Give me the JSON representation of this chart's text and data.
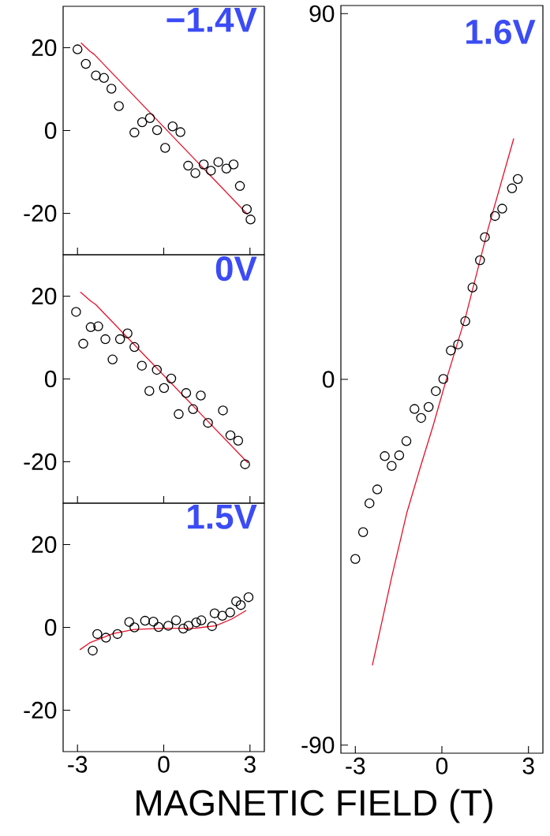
{
  "chart_data": [
    {
      "type": "scatter",
      "title": "−1.4V",
      "xlim": [
        -3.5,
        3.5
      ],
      "ylim": [
        -30,
        30
      ],
      "xticks": [
        -3,
        0,
        3
      ],
      "yticks": [
        -20,
        0,
        20
      ],
      "tick_labels": "y",
      "series": [
        {
          "marker": "circle",
          "color": "#000000",
          "x": [
            -3.0,
            -2.71,
            -2.36,
            -2.08,
            -1.82,
            -1.56,
            -1.02,
            -0.75,
            -0.48,
            -0.23,
            0.05,
            0.31,
            0.58,
            0.85,
            1.1,
            1.39,
            1.64,
            1.9,
            2.18,
            2.43,
            2.65,
            2.89,
            3.02
          ],
          "values": [
            19.6,
            16.1,
            13.3,
            12.7,
            10.1,
            5.9,
            -0.5,
            2.0,
            3.0,
            0.1,
            -4.2,
            1.0,
            -0.4,
            -8.5,
            -10.3,
            -8.2,
            -9.7,
            -7.6,
            -9.2,
            -8.2,
            -13.4,
            -19.0,
            -21.5
          ]
        },
        {
          "type": "line",
          "color": "#e8102a",
          "x": [
            -2.88,
            -2.56,
            -2.42,
            2.92
          ],
          "values": [
            21.2,
            19.1,
            18.4,
            -20.3
          ]
        }
      ]
    },
    {
      "type": "scatter",
      "title": "0V",
      "xlim": [
        -3.5,
        3.5
      ],
      "ylim": [
        -30,
        30
      ],
      "xticks": [
        -3,
        0,
        3
      ],
      "yticks": [
        -20,
        0,
        20
      ],
      "tick_labels": "y",
      "series": [
        {
          "marker": "circle",
          "color": "#000000",
          "x": [
            -3.05,
            -2.8,
            -2.54,
            -2.28,
            -2.03,
            -1.78,
            -1.52,
            -1.26,
            -1.02,
            -0.76,
            -0.5,
            -0.24,
            0.01,
            0.26,
            0.52,
            0.78,
            1.02,
            1.29,
            1.54,
            2.06,
            2.32,
            2.59,
            2.83
          ],
          "values": [
            16.2,
            8.5,
            12.5,
            12.7,
            9.6,
            4.7,
            9.6,
            11.0,
            7.7,
            3.2,
            -2.9,
            2.2,
            -2.2,
            0.1,
            -8.5,
            -3.4,
            -7.3,
            -4.0,
            -10.6,
            -7.6,
            -13.6,
            -14.9,
            -20.6
          ]
        },
        {
          "type": "line",
          "color": "#e8102a",
          "x": [
            -2.9,
            -2.54,
            -2.37,
            2.93
          ],
          "values": [
            21.0,
            18.8,
            18.0,
            -20.3
          ]
        }
      ]
    },
    {
      "type": "scatter",
      "title": "1.5V",
      "xlabel": "MAGNETIC FIELD (T)",
      "xlim": [
        -3.5,
        3.5
      ],
      "ylim": [
        -30,
        30
      ],
      "xticks": [
        -3,
        0,
        3
      ],
      "yticks": [
        -20,
        0,
        20
      ],
      "series": [
        {
          "marker": "circle",
          "color": "#000000",
          "x": [
            -2.47,
            -2.31,
            -2.01,
            -1.61,
            -1.2,
            -1.02,
            -0.65,
            -0.36,
            -0.18,
            0.16,
            0.43,
            0.68,
            0.86,
            1.13,
            1.31,
            1.68,
            1.77,
            2.04,
            2.31,
            2.52,
            2.68,
            2.95
          ],
          "values": [
            -5.6,
            -1.6,
            -2.5,
            -1.6,
            1.3,
            0.0,
            1.6,
            1.4,
            0.1,
            0.4,
            1.7,
            -0.3,
            0.4,
            1.2,
            1.7,
            0.3,
            3.4,
            2.8,
            3.6,
            6.3,
            5.4,
            7.3
          ]
        },
        {
          "type": "line",
          "color": "#e8102a",
          "x": [
            -2.92,
            -2.57,
            -1.76,
            -1.04,
            0.0,
            1.09,
            1.81,
            2.36,
            2.87
          ],
          "values": [
            -5.4,
            -3.7,
            -1.5,
            -0.5,
            -0.2,
            -0.2,
            0.4,
            2.0,
            4.1
          ]
        }
      ]
    },
    {
      "type": "scatter",
      "title": "1.6V",
      "xlim": [
        -3.5,
        3.5
      ],
      "ylim": [
        -92,
        92
      ],
      "xticks": [
        -3,
        0,
        3
      ],
      "yticks": [
        -90,
        0,
        90
      ],
      "series": [
        {
          "marker": "circle",
          "color": "#000000",
          "x": [
            -3.0,
            -2.73,
            -2.51,
            -2.24,
            -1.98,
            -1.74,
            -1.48,
            -1.23,
            -0.95,
            -0.72,
            -0.46,
            -0.21,
            0.05,
            0.31,
            0.56,
            0.81,
            1.06,
            1.32,
            1.49,
            1.84,
            2.09,
            2.43,
            2.63
          ],
          "values": [
            -44.2,
            -37.6,
            -30.5,
            -27.1,
            -18.9,
            -21.3,
            -18.7,
            -15.2,
            -7.3,
            -9.5,
            -6.8,
            -2.9,
            0.1,
            7.1,
            8.6,
            14.3,
            22.6,
            29.3,
            35.0,
            40.2,
            42.0,
            47.0,
            49.3
          ]
        },
        {
          "type": "line",
          "color": "#e8102a",
          "x": [
            -2.41,
            -1.75,
            -1.21,
            -0.75,
            -0.3,
            0.13,
            0.84,
            1.61,
            2.49
          ],
          "values": [
            -70.4,
            -49.0,
            -32.7,
            -21.7,
            -11.3,
            -0.6,
            15.9,
            37.3,
            59.3
          ]
        }
      ]
    }
  ]
}
